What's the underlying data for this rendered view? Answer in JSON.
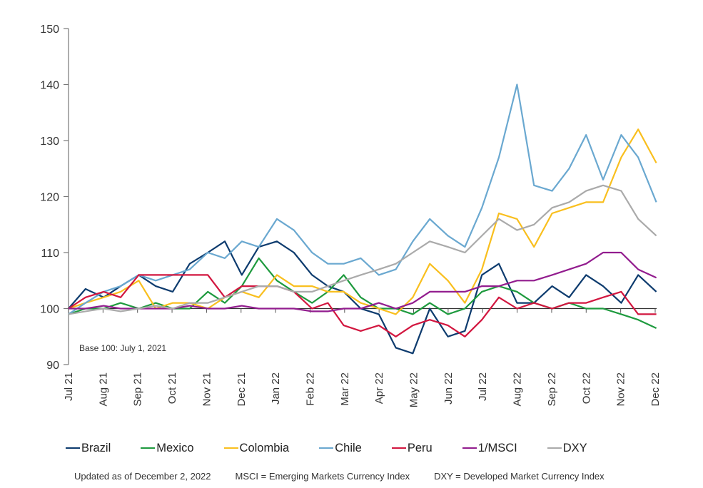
{
  "chart_data": {
    "type": "line",
    "title": "",
    "xlabel": "",
    "ylabel": "",
    "ylim": [
      90,
      150
    ],
    "yticks": [
      90,
      100,
      110,
      120,
      130,
      140,
      150
    ],
    "xlim": [
      "2021-07-01",
      "2022-12-02"
    ],
    "xtick_labels": [
      "Jul 21",
      "Aug 21",
      "Sep 21",
      "Oct 21",
      "Nov 21",
      "Dec 21",
      "Jan 22",
      "Feb 22",
      "Mar 22",
      "Apr 22",
      "May 22",
      "Jun 22",
      "Jul 22",
      "Aug 22",
      "Sep 22",
      "Oct 22",
      "Nov 22",
      "Dec 22"
    ],
    "baseline": 100,
    "annotation": "Base 100: July 1, 2021",
    "legend_position": "bottom",
    "x": [
      "2021-07-01",
      "2021-07-16",
      "2021-08-01",
      "2021-08-16",
      "2021-09-01",
      "2021-09-16",
      "2021-10-01",
      "2021-10-16",
      "2021-11-01",
      "2021-11-16",
      "2021-12-01",
      "2021-12-16",
      "2022-01-01",
      "2022-01-16",
      "2022-02-01",
      "2022-02-15",
      "2022-03-01",
      "2022-03-16",
      "2022-04-01",
      "2022-04-16",
      "2022-05-01",
      "2022-05-16",
      "2022-06-01",
      "2022-06-16",
      "2022-07-01",
      "2022-07-16",
      "2022-08-01",
      "2022-08-16",
      "2022-09-01",
      "2022-09-16",
      "2022-10-01",
      "2022-10-16",
      "2022-11-01",
      "2022-11-16",
      "2022-12-02"
    ],
    "series": [
      {
        "name": "Brazil",
        "color": "#0d3b6e",
        "values": [
          100,
          103.5,
          102,
          104,
          106,
          104,
          103,
          108,
          110,
          112,
          106,
          111,
          112,
          110,
          106,
          104,
          103,
          100,
          99,
          93,
          92,
          100,
          95,
          96,
          106,
          108,
          101,
          101,
          104,
          102,
          106,
          104,
          101,
          106,
          103
        ]
      },
      {
        "name": "Mexico",
        "color": "#1e9a3e",
        "values": [
          99,
          100,
          100,
          101,
          100,
          101,
          100,
          100,
          103,
          101,
          104,
          109,
          105,
          103,
          101,
          103,
          106,
          102,
          100,
          100,
          99,
          101,
          99,
          100,
          103,
          104,
          103,
          101,
          100,
          101,
          100,
          100,
          99,
          98,
          96.5
        ]
      },
      {
        "name": "Colombia",
        "color": "#f9bf1e",
        "values": [
          100,
          101,
          102,
          103,
          105,
          100,
          101,
          101,
          100,
          102,
          103,
          102,
          106,
          104,
          104,
          103,
          103,
          101,
          100,
          99,
          102,
          108,
          105,
          101,
          107,
          117,
          116,
          111,
          117,
          118,
          119,
          119,
          127,
          132,
          126
        ]
      },
      {
        "name": "Chile",
        "color": "#6aa8d0",
        "values": [
          99,
          101,
          103,
          104,
          106,
          105,
          106,
          107,
          110,
          109,
          112,
          111,
          116,
          114,
          110,
          108,
          108,
          109,
          106,
          107,
          112,
          116,
          113,
          111,
          118,
          127,
          140,
          122,
          121,
          125,
          131,
          123,
          131,
          127,
          119
        ]
      },
      {
        "name": "Peru",
        "color": "#d2163f",
        "values": [
          100,
          102,
          103,
          102,
          106,
          106,
          106,
          106,
          106,
          102,
          104,
          104,
          104,
          103,
          100,
          101,
          97,
          96,
          97,
          95,
          97,
          98,
          97,
          95,
          98,
          102,
          100,
          101,
          100,
          101,
          101,
          102,
          103,
          99,
          99
        ]
      },
      {
        "name": "1/MSCI",
        "color": "#921c8e",
        "values": [
          100,
          100,
          100.5,
          100,
          100,
          100,
          100,
          100.5,
          100,
          100,
          100.5,
          100,
          100,
          100,
          99.5,
          99.5,
          100,
          100,
          101,
          100,
          101,
          103,
          103,
          103,
          104,
          104,
          105,
          105,
          106,
          107,
          108,
          110,
          110,
          107,
          105.5
        ]
      },
      {
        "name": "DXY",
        "color": "#aaaaaa",
        "values": [
          99,
          99.5,
          100,
          99.5,
          100,
          100.5,
          100,
          101,
          101,
          102,
          103,
          104,
          104,
          103,
          103,
          104,
          105,
          106,
          107,
          108,
          110,
          112,
          111,
          110,
          113,
          116,
          114,
          115,
          118,
          119,
          121,
          122,
          121,
          116,
          113
        ]
      }
    ]
  },
  "footer": {
    "updated": "Updated as of December 2, 2022",
    "msci_note": "MSCI = Emerging Markets Currency Index",
    "dxy_note": "DXY = Developed Market Currency Index"
  }
}
